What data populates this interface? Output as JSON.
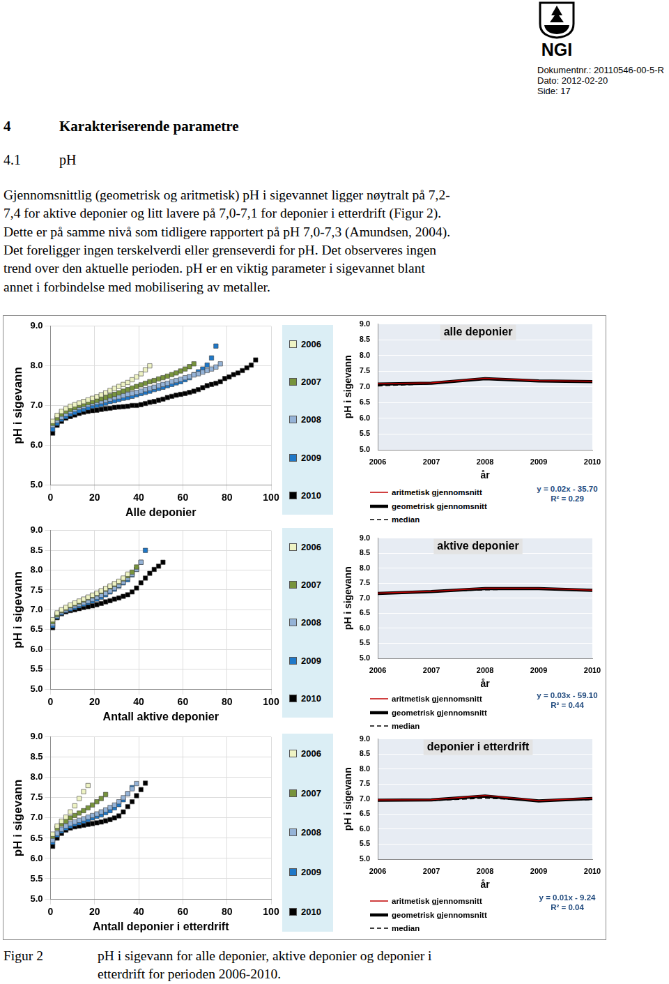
{
  "header": {
    "logo": "NGI",
    "document_number": "Dokumentnr.: 20110546-00-5-R",
    "date": "Dato: 2012-02-20",
    "page": "Side: 17"
  },
  "section": {
    "number": "4",
    "title": "Karakteriserende parametre"
  },
  "subsection": {
    "number": "4.1",
    "title": "pH"
  },
  "paragraph_lines": [
    "Gjennomsnittlig (geometrisk og aritmetisk) pH i sigevannet ligger nøytralt på 7,2-",
    "7,4 for aktive deponier og litt lavere på 7,0-7,1 for deponier i etterdrift (Figur 2).",
    "Dette er på samme nivå som tidligere rapportert på pH 7,0-7,3 (Amundsen, 2004).",
    "Det foreligger ingen terskelverdi eller grenseverdi for pH. Det observeres ingen",
    "trend over den aktuelle perioden. pH er en viktig parameter i sigevannet blant",
    "annet i forbindelse med mobilisering av metaller."
  ],
  "chart_data": [
    {
      "type": "scatter",
      "x_label": "Alle deponier",
      "y_label": "pH i sigevann",
      "marker": "square",
      "grid": true,
      "legend": "right",
      "xlim": [
        0,
        100
      ],
      "xticks": [
        0,
        20,
        40,
        60,
        80,
        100
      ],
      "ylim": [
        5,
        9
      ],
      "yticks": [
        {
          "value": 5,
          "label": "5.0"
        },
        {
          "value": 6,
          "label": "6.0"
        },
        {
          "value": 7,
          "label": "7.0"
        },
        {
          "value": 8,
          "label": "8.0"
        },
        {
          "value": 9,
          "label": "9.0"
        }
      ],
      "x": [
        1,
        3,
        5,
        7,
        9,
        11,
        13,
        15,
        17,
        19,
        21,
        23,
        25,
        27,
        29,
        31,
        33,
        35,
        37,
        39,
        41,
        43,
        45,
        47,
        49,
        51,
        53,
        55,
        57,
        59,
        61,
        63,
        65,
        67,
        69,
        71,
        73,
        75,
        77,
        79,
        81,
        83,
        85,
        87,
        89,
        91,
        93,
        95
      ],
      "series": [
        {
          "name": "2006",
          "color": "#eef3c4",
          "values": [
            6.6,
            6.75,
            6.85,
            6.92,
            6.98,
            7.02,
            7.06,
            7.1,
            7.14,
            7.18,
            7.22,
            7.27,
            7.32,
            7.38,
            7.43,
            7.48,
            7.53,
            7.58,
            7.65,
            7.72,
            7.8,
            7.9,
            8.0,
            null,
            null,
            null,
            null,
            null,
            null,
            null,
            null,
            null,
            null,
            null,
            null,
            null,
            null,
            null,
            null,
            null,
            null,
            null,
            null,
            null,
            null,
            null,
            null,
            null
          ]
        },
        {
          "name": "2007",
          "color": "#77933c",
          "values": [
            6.55,
            6.68,
            6.78,
            6.85,
            6.9,
            6.95,
            7.0,
            7.03,
            7.07,
            7.1,
            7.13,
            7.17,
            7.2,
            7.24,
            7.28,
            7.32,
            7.36,
            7.4,
            7.44,
            7.48,
            7.52,
            7.56,
            7.6,
            7.63,
            7.67,
            7.7,
            7.74,
            7.78,
            7.82,
            7.87,
            7.92,
            7.98,
            8.05,
            null,
            null,
            null,
            null,
            null,
            null,
            null,
            null,
            null,
            null,
            null,
            null,
            null,
            null,
            null
          ]
        },
        {
          "name": "2008",
          "color": "#95b3d7",
          "values": [
            6.5,
            6.62,
            6.7,
            6.78,
            6.85,
            6.9,
            6.95,
            6.98,
            7.02,
            7.05,
            7.08,
            7.1,
            7.13,
            7.16,
            7.2,
            7.22,
            7.25,
            7.28,
            7.3,
            7.33,
            7.36,
            7.4,
            7.43,
            7.46,
            7.5,
            7.53,
            7.56,
            7.6,
            7.63,
            7.66,
            7.7,
            7.73,
            7.77,
            7.8,
            7.84,
            7.88,
            7.92,
            7.97,
            8.05,
            null,
            null,
            null,
            null,
            null,
            null,
            null,
            null,
            null
          ]
        },
        {
          "name": "2009",
          "color": "#1f78c8",
          "values": [
            6.4,
            6.55,
            6.65,
            6.72,
            6.78,
            6.82,
            6.87,
            6.9,
            6.94,
            6.98,
            7.0,
            7.03,
            7.06,
            7.1,
            7.12,
            7.15,
            7.18,
            7.2,
            7.23,
            7.27,
            7.3,
            7.33,
            7.36,
            7.4,
            7.43,
            7.46,
            7.5,
            7.53,
            7.57,
            7.6,
            7.65,
            7.7,
            7.78,
            7.85,
            7.92,
            8.02,
            8.2,
            8.5,
            null,
            null,
            null,
            null,
            null,
            null,
            null,
            null,
            null,
            null
          ]
        },
        {
          "name": "2010",
          "color": "#000000",
          "values": [
            6.3,
            6.5,
            6.6,
            6.68,
            6.72,
            6.76,
            6.8,
            6.83,
            6.85,
            6.87,
            6.88,
            6.9,
            6.92,
            6.93,
            6.95,
            6.96,
            6.97,
            6.98,
            7.0,
            7.0,
            7.02,
            7.05,
            7.08,
            7.1,
            7.13,
            7.16,
            7.2,
            7.23,
            7.26,
            7.28,
            7.3,
            7.33,
            7.36,
            7.4,
            7.45,
            7.5,
            7.53,
            7.56,
            7.6,
            7.68,
            7.72,
            7.78,
            7.82,
            7.88,
            7.95,
            8.02,
            8.15,
            null
          ]
        }
      ]
    },
    {
      "type": "line",
      "title": "alle deponier",
      "x_label": "år",
      "y_label": "pH i sigevann",
      "grid": true,
      "legend": "bottom",
      "categories": [
        "2006",
        "2007",
        "2008",
        "2009",
        "2010"
      ],
      "ylim": [
        5,
        9
      ],
      "yticks": [
        {
          "value": 5,
          "label": "5.0"
        },
        5.5,
        {
          "value": 6,
          "label": "6.0"
        },
        6.5,
        {
          "value": 7,
          "label": "7.0"
        },
        7.5,
        {
          "value": 8,
          "label": "8.0"
        },
        8.5,
        {
          "value": 9,
          "label": "9.0"
        }
      ],
      "series": [
        {
          "name": "aritmetisk gjennomsnitt",
          "color": "#c00000",
          "line_style": "solid",
          "values": [
            7.1,
            7.13,
            7.27,
            7.2,
            7.18
          ]
        },
        {
          "name": "geometrisk gjennomsnitt",
          "color": "#000000",
          "line_style": "solid",
          "values": [
            7.09,
            7.12,
            7.26,
            7.19,
            7.17
          ]
        },
        {
          "name": "median",
          "color": "#000000",
          "line_style": "dashed",
          "values": [
            7.03,
            7.1,
            7.25,
            7.18,
            7.18
          ]
        }
      ],
      "annotations": [
        "y = 0.02x - 35.70",
        "R² = 0.29"
      ]
    },
    {
      "type": "scatter",
      "x_label": "Antall aktive deponier",
      "y_label": "pH i sigevann",
      "marker": "square",
      "grid": true,
      "legend": "right",
      "xlim": [
        0,
        100
      ],
      "xticks": [
        0,
        20,
        40,
        60,
        80,
        100
      ],
      "ylim": [
        5,
        9
      ],
      "yticks": [
        {
          "value": 5,
          "label": "5.0"
        },
        5.5,
        {
          "value": 6,
          "label": "6.0"
        },
        6.5,
        {
          "value": 7,
          "label": "7.0"
        },
        7.5,
        {
          "value": 8,
          "label": "8.0"
        },
        8.5,
        {
          "value": 9,
          "label": "9.0"
        }
      ],
      "x": [
        1,
        3,
        5,
        7,
        9,
        11,
        13,
        15,
        17,
        19,
        21,
        23,
        25,
        27,
        29,
        31,
        33,
        35,
        37,
        39,
        41,
        43,
        45,
        47,
        49,
        51
      ],
      "series": [
        {
          "name": "2006",
          "color": "#eef3c4",
          "values": [
            6.75,
            6.92,
            7.0,
            7.06,
            7.12,
            7.17,
            7.22,
            7.27,
            7.32,
            7.37,
            7.42,
            7.48,
            7.54,
            7.6,
            7.66,
            7.72,
            7.8,
            7.9,
            null,
            null,
            null,
            null,
            null,
            null,
            null,
            null
          ]
        },
        {
          "name": "2007",
          "color": "#77933c",
          "values": [
            6.7,
            6.88,
            6.98,
            7.04,
            7.1,
            7.15,
            7.2,
            7.25,
            7.3,
            7.35,
            7.4,
            7.46,
            7.52,
            7.58,
            7.64,
            7.7,
            7.78,
            7.86,
            7.95,
            8.08,
            null,
            null,
            null,
            null,
            null,
            null
          ]
        },
        {
          "name": "2008",
          "color": "#95b3d7",
          "values": [
            6.65,
            6.85,
            6.95,
            7.0,
            7.05,
            7.1,
            7.14,
            7.18,
            7.22,
            7.27,
            7.32,
            7.37,
            7.42,
            7.48,
            7.55,
            7.62,
            7.7,
            7.8,
            7.9,
            8.02,
            8.2,
            null,
            null,
            null,
            null,
            null
          ]
        },
        {
          "name": "2009",
          "color": "#1f78c8",
          "values": [
            6.6,
            6.82,
            6.92,
            6.98,
            7.02,
            7.06,
            7.1,
            7.14,
            7.18,
            7.22,
            7.27,
            7.32,
            7.38,
            7.45,
            7.52,
            7.6,
            7.68,
            7.76,
            7.88,
            8.02,
            8.2,
            8.5,
            null,
            null,
            null,
            null
          ]
        },
        {
          "name": "2010",
          "color": "#000000",
          "values": [
            6.55,
            6.8,
            6.9,
            6.95,
            6.98,
            7.0,
            7.03,
            7.06,
            7.08,
            7.1,
            7.13,
            7.16,
            7.2,
            7.23,
            7.27,
            7.3,
            7.34,
            7.38,
            7.45,
            7.55,
            7.68,
            7.8,
            7.92,
            8.02,
            8.1,
            8.2
          ]
        }
      ]
    },
    {
      "type": "line",
      "title": "aktive deponier",
      "x_label": "år",
      "y_label": "pH i sigevann",
      "grid": true,
      "legend": "bottom",
      "categories": [
        "2006",
        "2007",
        "2008",
        "2009",
        "2010"
      ],
      "ylim": [
        5,
        9
      ],
      "yticks": [
        {
          "value": 5,
          "label": "5.0"
        },
        5.5,
        {
          "value": 6,
          "label": "6.0"
        },
        6.5,
        {
          "value": 7,
          "label": "7.0"
        },
        7.5,
        {
          "value": 8,
          "label": "8.0"
        },
        8.5,
        {
          "value": 9,
          "label": "9.0"
        }
      ],
      "series": [
        {
          "name": "aritmetisk gjennomsnitt",
          "color": "#c00000",
          "line_style": "solid",
          "values": [
            7.17,
            7.23,
            7.33,
            7.33,
            7.27
          ]
        },
        {
          "name": "geometrisk gjennomsnitt",
          "color": "#000000",
          "line_style": "solid",
          "values": [
            7.16,
            7.22,
            7.32,
            7.32,
            7.26
          ]
        },
        {
          "name": "median",
          "color": "#000000",
          "line_style": "dashed",
          "values": [
            7.17,
            7.22,
            7.28,
            7.32,
            7.28
          ]
        }
      ],
      "annotations": [
        "y = 0.03x - 59.10",
        "R² = 0.44"
      ]
    },
    {
      "type": "scatter",
      "x_label": "Antall deponier i etterdrift",
      "y_label": "pH i sigevann",
      "marker": "square",
      "grid": true,
      "legend": "right",
      "xlim": [
        0,
        100
      ],
      "xticks": [
        0,
        20,
        40,
        60,
        80,
        100
      ],
      "ylim": [
        5,
        9
      ],
      "yticks": [
        {
          "value": 5,
          "label": "5.0"
        },
        5.5,
        {
          "value": 6,
          "label": "6.0"
        },
        6.5,
        {
          "value": 7,
          "label": "7.0"
        },
        7.5,
        {
          "value": 8,
          "label": "8.0"
        },
        8.5,
        {
          "value": 9,
          "label": "9.0"
        }
      ],
      "x": [
        1,
        3,
        5,
        7,
        9,
        11,
        13,
        15,
        17,
        19,
        21,
        23,
        25,
        27,
        29,
        31,
        33,
        35,
        37,
        39,
        41,
        43
      ],
      "series": [
        {
          "name": "2006",
          "color": "#eef3c4",
          "values": [
            6.6,
            6.8,
            6.92,
            7.02,
            7.15,
            7.3,
            7.48,
            7.65,
            7.8,
            null,
            null,
            null,
            null,
            null,
            null,
            null,
            null,
            null,
            null,
            null,
            null,
            null
          ]
        },
        {
          "name": "2007",
          "color": "#77933c",
          "values": [
            6.55,
            6.75,
            6.85,
            6.92,
            7.0,
            7.06,
            7.12,
            7.18,
            7.25,
            7.32,
            7.4,
            7.48,
            7.58,
            null,
            null,
            null,
            null,
            null,
            null,
            null,
            null,
            null
          ]
        },
        {
          "name": "2008",
          "color": "#95b3d7",
          "values": [
            6.45,
            6.62,
            6.72,
            6.8,
            6.86,
            6.9,
            6.94,
            6.98,
            7.02,
            7.06,
            7.1,
            7.15,
            7.2,
            7.26,
            7.32,
            7.4,
            7.5,
            7.6,
            7.72,
            7.85,
            null,
            null
          ]
        },
        {
          "name": "2009",
          "color": "#1f78c8",
          "values": [
            6.4,
            6.58,
            6.68,
            6.75,
            6.8,
            6.85,
            6.88,
            6.92,
            6.96,
            7.0,
            7.04,
            7.08,
            7.13,
            7.18,
            7.25,
            7.33,
            7.45,
            7.6,
            7.75,
            null,
            null,
            null
          ]
        },
        {
          "name": "2010",
          "color": "#000000",
          "values": [
            6.3,
            6.5,
            6.62,
            6.7,
            6.75,
            6.78,
            6.8,
            6.82,
            6.84,
            6.86,
            6.88,
            6.9,
            6.93,
            6.96,
            7.0,
            7.05,
            7.15,
            7.28,
            7.4,
            7.55,
            7.7,
            7.86
          ]
        }
      ]
    },
    {
      "type": "line",
      "title": "deponier i etterdrift",
      "x_label": "år",
      "y_label": "pH i sigevann",
      "grid": true,
      "legend": "bottom",
      "categories": [
        "2006",
        "2007",
        "2008",
        "2009",
        "2010"
      ],
      "ylim": [
        5,
        9
      ],
      "yticks": [
        {
          "value": 5,
          "label": "5.0"
        },
        5.5,
        {
          "value": 6,
          "label": "6.0"
        },
        6.5,
        {
          "value": 7,
          "label": "7.0"
        },
        7.5,
        {
          "value": 8,
          "label": "8.0"
        },
        8.5,
        {
          "value": 9,
          "label": "9.0"
        }
      ],
      "series": [
        {
          "name": "aritmetisk gjennomsnitt",
          "color": "#c00000",
          "line_style": "solid",
          "values": [
            6.97,
            6.98,
            7.12,
            6.95,
            7.03
          ]
        },
        {
          "name": "geometrisk gjennomsnitt",
          "color": "#000000",
          "line_style": "solid",
          "values": [
            6.96,
            6.97,
            7.1,
            6.94,
            7.02
          ]
        },
        {
          "name": "median",
          "color": "#000000",
          "line_style": "dashed",
          "values": [
            6.95,
            6.95,
            7.03,
            6.95,
            6.98
          ]
        }
      ],
      "annotations": [
        "y = 0.01x - 9.24",
        "R² = 0.04"
      ]
    }
  ],
  "caption": {
    "label": "Figur 2",
    "lines": [
      "pH i sigevann for alle deponier, aktive deponier og deponier i",
      "etterdrift for perioden 2006-2010."
    ]
  }
}
